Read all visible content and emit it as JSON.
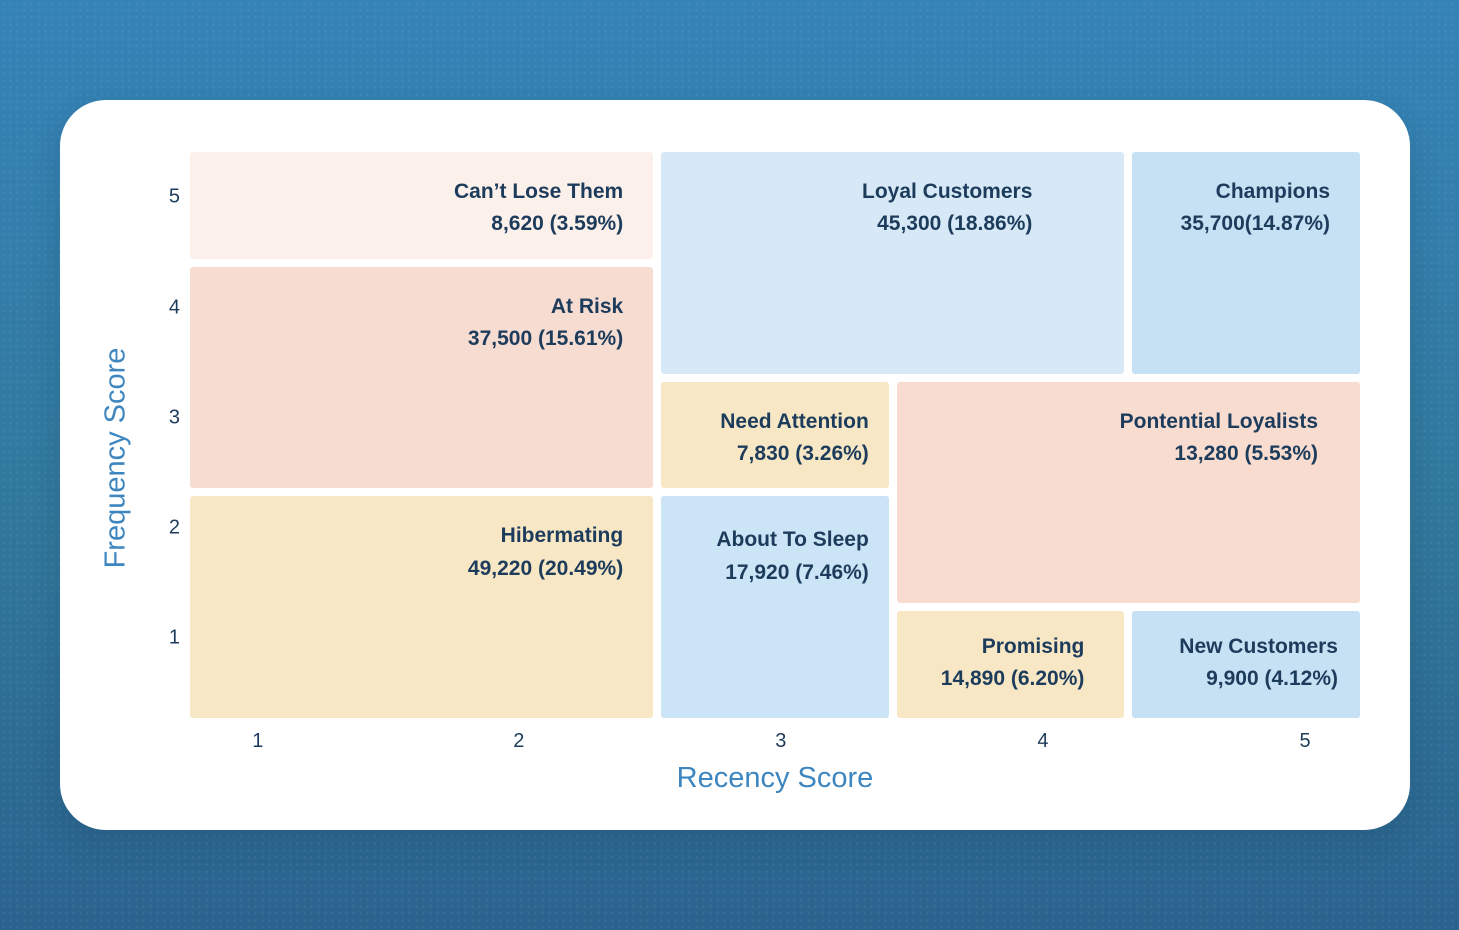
{
  "colors": {
    "background_top": "#3583b8",
    "background_bottom": "#2a638e",
    "card_background": "#ffffff",
    "segment_text": "#1d3c5c",
    "axis_title": "#3e86bf",
    "tick_text": "#1d3c5c"
  },
  "axes": {
    "x_title": "Recency Score",
    "y_title": "Frequency Score",
    "x_ticks": [
      "1",
      "2",
      "3",
      "4",
      "5"
    ],
    "y_ticks": [
      "5",
      "4",
      "3",
      "2",
      "1"
    ]
  },
  "chart_data": {
    "type": "heatmap",
    "subtype": "rfm-segment-grid",
    "title": "",
    "xlabel": "Recency Score",
    "ylabel": "Frequency Score",
    "x_range": [
      1,
      5
    ],
    "y_range": [
      1,
      5
    ],
    "grid": false,
    "legend_position": "none",
    "segments": [
      {
        "name": "Can’t Lose Them",
        "count": 8620,
        "percent": 3.59,
        "value_label": "8,620 (3.59%)",
        "recency": [
          1,
          2
        ],
        "frequency": [
          5,
          5
        ],
        "color": "#fcf0eb"
      },
      {
        "name": "At Risk",
        "count": 37500,
        "percent": 15.61,
        "value_label": "37,500 (15.61%)",
        "recency": [
          1,
          2
        ],
        "frequency": [
          3,
          4
        ],
        "color": "#f7dcd2"
      },
      {
        "name": "Hibermating",
        "count": 49220,
        "percent": 20.49,
        "value_label": "49,220 (20.49%)",
        "recency": [
          1,
          2
        ],
        "frequency": [
          1,
          2
        ],
        "color": "#f7e7c5"
      },
      {
        "name": "Loyal Customers",
        "count": 45300,
        "percent": 18.86,
        "value_label": "45,300 (18.86%)",
        "recency": [
          3,
          4
        ],
        "frequency": [
          4,
          5
        ],
        "color": "#d7e9f7"
      },
      {
        "name": "Champions",
        "count": 35700,
        "percent": 14.87,
        "value_label": "35,700(14.87%)",
        "recency": [
          5,
          5
        ],
        "frequency": [
          4,
          5
        ],
        "color": "#c6e0f4"
      },
      {
        "name": "Need Attention",
        "count": 7830,
        "percent": 3.26,
        "value_label": "7,830 (3.26%)",
        "recency": [
          3,
          3
        ],
        "frequency": [
          3,
          3
        ],
        "color": "#f7e7c5"
      },
      {
        "name": "Pontential Loyalists",
        "count": 13280,
        "percent": 5.53,
        "value_label": "13,280 (5.53%)",
        "recency": [
          4,
          5
        ],
        "frequency": [
          2,
          3
        ],
        "color": "#f8dcd0"
      },
      {
        "name": "About To Sleep",
        "count": 17920,
        "percent": 7.46,
        "value_label": "17,920 (7.46%)",
        "recency": [
          3,
          3
        ],
        "frequency": [
          1,
          2
        ],
        "color": "#cbe4f6"
      },
      {
        "name": "Promising",
        "count": 14890,
        "percent": 6.2,
        "value_label": "14,890 (6.20%)",
        "recency": [
          4,
          4
        ],
        "frequency": [
          1,
          1
        ],
        "color": "#f7e7c5"
      },
      {
        "name": "New Customers",
        "count": 9900,
        "percent": 4.12,
        "value_label": "9,900 (4.12%)",
        "recency": [
          5,
          5
        ],
        "frequency": [
          1,
          1
        ],
        "color": "#c6e0f4"
      }
    ]
  }
}
